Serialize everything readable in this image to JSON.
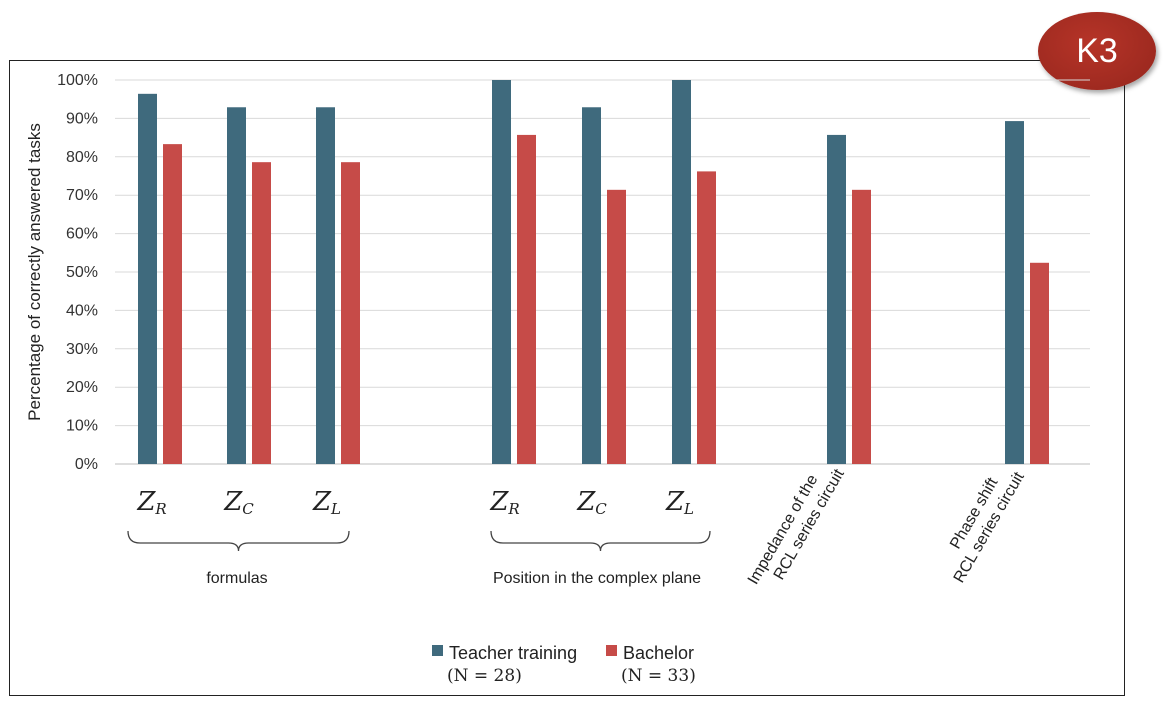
{
  "badge": "K3",
  "chart_data": {
    "type": "bar",
    "ylabel": "Percentage of correctly answered tasks",
    "ylim": [
      0,
      100
    ],
    "yticks": [
      "0%",
      "10%",
      "20%",
      "30%",
      "40%",
      "50%",
      "60%",
      "70%",
      "80%",
      "90%",
      "100%"
    ],
    "grid": true,
    "legend_position": "bottom",
    "categories": [
      {
        "main": "Z",
        "sub": "R",
        "label": "Z_R"
      },
      {
        "main": "Z",
        "sub": "C",
        "label": "Z_C"
      },
      {
        "main": "Z",
        "sub": "L",
        "label": "Z_L"
      },
      {
        "main": "Z",
        "sub": "R",
        "label": "Z_R"
      },
      {
        "main": "Z",
        "sub": "C",
        "label": "Z_C"
      },
      {
        "main": "Z",
        "sub": "L",
        "label": "Z_L"
      },
      {
        "label": "Impedance of the RCL series circuit",
        "lines": [
          "Impedance of the",
          "RCL series circuit"
        ]
      },
      {
        "label": "Phase shift RCL series circuit",
        "lines": [
          "Phase shift",
          "RCL series circuit"
        ]
      }
    ],
    "groups": [
      {
        "label": "formulas"
      },
      {
        "label": "Position in the complex plane"
      }
    ],
    "series": [
      {
        "name": "Teacher training",
        "n_label": "(N = 28)",
        "color": "#3f6a7d",
        "values": [
          96.4,
          92.9,
          92.9,
          100,
          92.9,
          100,
          85.7,
          89.3
        ]
      },
      {
        "name": "Bachelor",
        "n_label": "(N = 33)",
        "color": "#c64b48",
        "values": [
          83.3,
          78.6,
          78.6,
          85.7,
          71.4,
          76.2,
          71.4,
          52.4
        ]
      }
    ]
  }
}
